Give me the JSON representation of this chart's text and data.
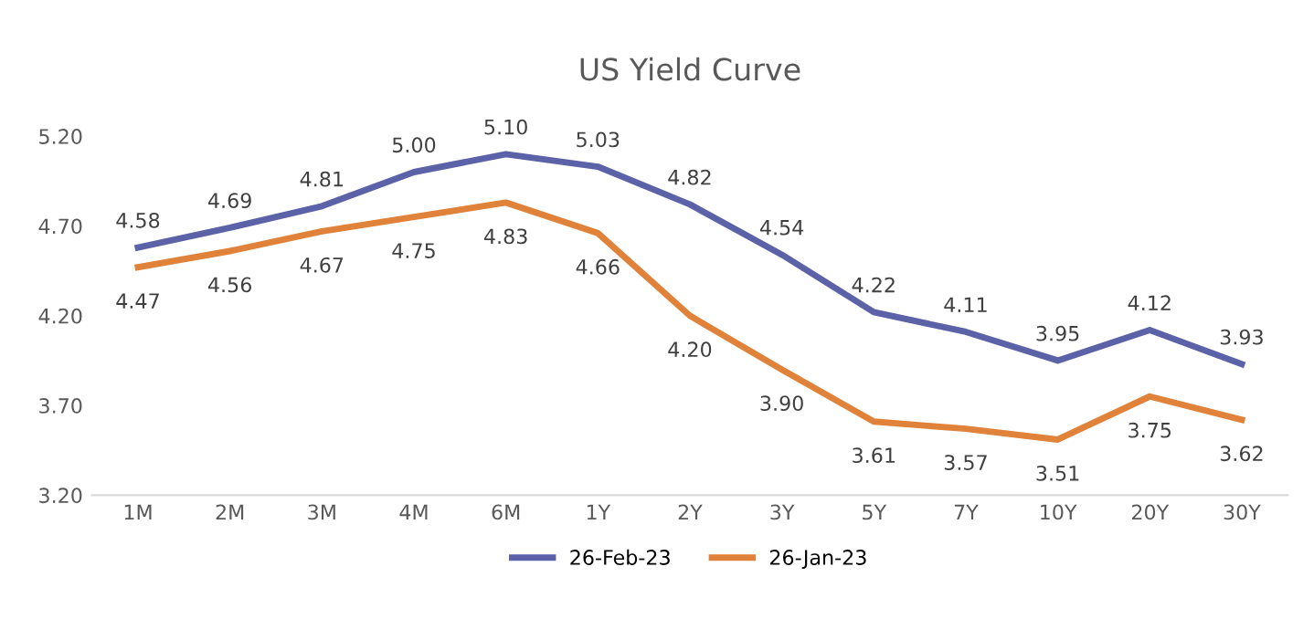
{
  "chart_data": {
    "type": "line",
    "title": "US Yield Curve",
    "categories": [
      "1M",
      "2M",
      "3M",
      "4M",
      "6M",
      "1Y",
      "2Y",
      "3Y",
      "5Y",
      "7Y",
      "10Y",
      "20Y",
      "30Y"
    ],
    "series": [
      {
        "name": "26-Feb-23",
        "color": "#5b62a8",
        "values": [
          4.58,
          4.69,
          4.81,
          5.0,
          5.1,
          5.03,
          4.82,
          4.54,
          4.22,
          4.11,
          3.95,
          4.12,
          3.93
        ],
        "value_labels": [
          "4.58",
          "4.69",
          "4.81",
          "5.00",
          "5.10",
          "5.03",
          "4.82",
          "4.54",
          "4.22",
          "4.11",
          "3.95",
          "4.12",
          "3.93"
        ]
      },
      {
        "name": "26-Jan-23",
        "color": "#e0823a",
        "values": [
          4.47,
          4.56,
          4.67,
          4.75,
          4.83,
          4.66,
          4.2,
          3.9,
          3.61,
          3.57,
          3.51,
          3.75,
          3.62
        ],
        "value_labels": [
          "4.47",
          "4.56",
          "4.67",
          "4.75",
          "4.83",
          "4.66",
          "4.20",
          "3.90",
          "3.61",
          "3.57",
          "3.51",
          "3.75",
          "3.62"
        ]
      }
    ],
    "ylim": [
      3.2,
      5.2
    ],
    "yticks": [
      {
        "value": 3.2,
        "label": "3.20"
      },
      {
        "value": 3.7,
        "label": "3.70"
      },
      {
        "value": 4.2,
        "label": "4.20"
      },
      {
        "value": 4.7,
        "label": "4.70"
      },
      {
        "value": 5.2,
        "label": "5.20"
      }
    ],
    "grid": false,
    "legend": "bottom",
    "marker": "none",
    "line_style": "solid"
  }
}
